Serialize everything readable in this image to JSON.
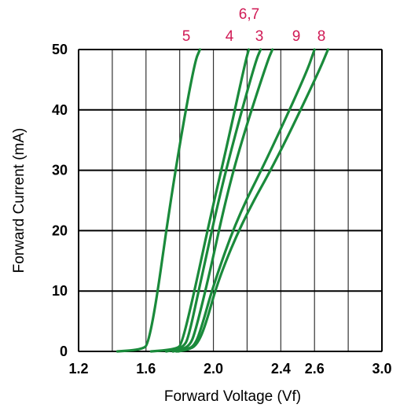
{
  "chart_data": {
    "type": "line",
    "xlabel": "Forward Voltage (Vf)",
    "ylabel": "Forward Current (mA)",
    "xlim": [
      1.2,
      3.0
    ],
    "ylim": [
      0,
      50
    ],
    "x_ticks": [
      1.2,
      1.4,
      1.6,
      1.8,
      2.0,
      2.2,
      2.4,
      2.6,
      2.8,
      3.0
    ],
    "x_tick_labels": [
      "1.2",
      "1.6",
      "2.0",
      "2.4",
      "2.6",
      "3.0"
    ],
    "x_tick_label_values": [
      1.2,
      1.6,
      2.0,
      2.4,
      2.6,
      3.0
    ],
    "y_ticks": [
      0,
      10,
      20,
      30,
      40,
      50
    ],
    "y_tick_labels": [
      "0",
      "10",
      "20",
      "30",
      "40",
      "50"
    ],
    "grid": true,
    "series_labels": [
      "5",
      "4",
      "6,7",
      "3",
      "9",
      "8"
    ],
    "series": [
      {
        "name": "5",
        "x": [
          1.43,
          1.53,
          1.58,
          1.61,
          1.66,
          1.73,
          1.81,
          1.89,
          1.92
        ],
        "y": [
          0,
          0.2,
          0.5,
          1,
          8,
          22,
          36,
          48,
          50
        ]
      },
      {
        "name": "4",
        "x": [
          1.63,
          1.72,
          1.78,
          1.81,
          1.88,
          1.98,
          2.08,
          2.19,
          2.21
        ],
        "y": [
          0,
          0.2,
          0.5,
          1,
          9,
          22,
          34,
          48,
          50
        ]
      },
      {
        "name": "6,7",
        "x": [
          1.72,
          1.78,
          1.82,
          1.85,
          1.92,
          2.03,
          2.13,
          2.25,
          2.28
        ],
        "y": [
          0,
          0.3,
          0.8,
          2,
          11,
          25,
          36,
          48,
          50
        ]
      },
      {
        "name": "3",
        "x": [
          1.76,
          1.81,
          1.86,
          1.89,
          1.97,
          2.08,
          2.18,
          2.32,
          2.35
        ],
        "y": [
          0,
          0.3,
          1,
          3,
          12,
          26,
          36,
          48,
          50
        ]
      },
      {
        "name": "9",
        "x": [
          1.78,
          1.84,
          1.89,
          1.93,
          2.0,
          2.14,
          2.32,
          2.55,
          2.6
        ],
        "y": [
          0,
          0.3,
          1,
          4,
          11,
          22,
          32,
          46,
          50
        ]
      },
      {
        "name": "8",
        "x": [
          1.79,
          1.85,
          1.9,
          1.95,
          2.03,
          2.18,
          2.38,
          2.62,
          2.68
        ],
        "y": [
          0,
          0.3,
          1,
          4,
          12,
          22,
          32,
          46,
          50
        ]
      }
    ],
    "colors": {
      "line": "#1a8a3b",
      "grid": "#000000",
      "label": "#d01a55"
    }
  }
}
